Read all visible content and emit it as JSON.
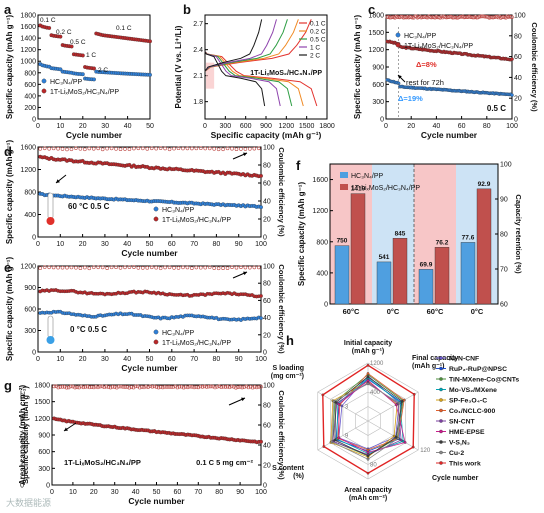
{
  "figure": {
    "panel_letters": [
      "a",
      "b",
      "c",
      "d",
      "e",
      "f",
      "g",
      "h"
    ],
    "watermark": "大数据能源"
  },
  "colors": {
    "blue": "#2f7fd6",
    "red": "#b8282a",
    "ce_red": "#c0504d",
    "arrow_blue": "#3399ff",
    "arrow_red": "#e0302a",
    "f_bg_red": "#f7c6c7",
    "f_bg_blue": "#cde3f5"
  },
  "chart_data": [
    {
      "panel": "a",
      "type": "scatter",
      "xlabel": "Cycle number",
      "ylabel": "Specific capacity (mAh g⁻¹)",
      "xlim": [
        0,
        50
      ],
      "ylim": [
        0,
        1800
      ],
      "xticks": [
        0,
        10,
        20,
        30,
        40,
        50
      ],
      "yticks": [
        0,
        200,
        400,
        600,
        800,
        1000,
        1200,
        1400,
        1600,
        1800
      ],
      "rate_labels": [
        "0.1 C",
        "0.2 C",
        "0.5 C",
        "1 C",
        "2 C",
        "0.1 C"
      ],
      "legend": [
        "HC₃N₄/PP",
        "1T-LiₓMoS₂/HC₃N₄/PP"
      ],
      "series": [
        {
          "name": "HC₃N₄/PP",
          "color": "#2f7fd6",
          "x": [
            1,
            2,
            3,
            4,
            5,
            6,
            7,
            8,
            9,
            10,
            11,
            12,
            13,
            14,
            15,
            16,
            17,
            18,
            19,
            20,
            21,
            22,
            23,
            24,
            25,
            26,
            27,
            28,
            29,
            30,
            31,
            32,
            33,
            34,
            35,
            36,
            37,
            38,
            39,
            40,
            41,
            42,
            43,
            44,
            45,
            46,
            47,
            48,
            49,
            50
          ],
          "y": [
            950,
            930,
            920,
            910,
            905,
            880,
            875,
            870,
            865,
            860,
            820,
            815,
            810,
            805,
            800,
            790,
            785,
            780,
            778,
            775,
            700,
            695,
            690,
            688,
            685,
            820,
            815,
            812,
            810,
            808,
            805,
            803,
            800,
            798,
            795,
            793,
            790,
            788,
            786,
            784,
            782,
            780,
            778,
            776,
            774,
            772,
            770,
            768,
            766,
            764
          ]
        },
        {
          "name": "1T-LiₓMoS₂/HC₃N₄/PP",
          "color": "#b8282a",
          "x": [
            1,
            2,
            3,
            4,
            5,
            6,
            7,
            8,
            9,
            10,
            11,
            12,
            13,
            14,
            15,
            16,
            17,
            18,
            19,
            20,
            21,
            22,
            23,
            24,
            25,
            26,
            27,
            28,
            29,
            30,
            31,
            32,
            33,
            34,
            35,
            36,
            37,
            38,
            39,
            40,
            41,
            42,
            43,
            44,
            45,
            46,
            47,
            48,
            49,
            50
          ],
          "y": [
            1620,
            1600,
            1590,
            1580,
            1575,
            1450,
            1440,
            1435,
            1430,
            1425,
            1280,
            1270,
            1265,
            1260,
            1255,
            1120,
            1115,
            1110,
            1105,
            1100,
            900,
            890,
            885,
            880,
            875,
            1480,
            1470,
            1460,
            1450,
            1445,
            1440,
            1435,
            1430,
            1425,
            1420,
            1415,
            1410,
            1405,
            1400,
            1395,
            1390,
            1385,
            1380,
            1375,
            1370,
            1365,
            1360,
            1355,
            1350,
            1345
          ]
        }
      ]
    },
    {
      "panel": "b",
      "type": "line",
      "xlabel": "Specific capacity (mAh g⁻¹)",
      "ylabel": "Potential (V vs. Li⁺/Li)",
      "xlim": [
        0,
        1800
      ],
      "ylim": [
        1.6,
        2.8
      ],
      "xticks": [
        0,
        300,
        600,
        900,
        1200,
        1500,
        1800
      ],
      "yticks": [
        1.8,
        2.1,
        2.4,
        2.7
      ],
      "annotation": "1T-LiₓMoS₂/HC₃N₄/PP",
      "series": [
        {
          "name": "0.1 C",
          "color": "#e3342f",
          "capacity": 1650
        },
        {
          "name": "0.2 C",
          "color": "#f08a24",
          "capacity": 1450
        },
        {
          "name": "0.5 C",
          "color": "#2e9e44",
          "capacity": 1280
        },
        {
          "name": "1 C",
          "color": "#8e44ad",
          "capacity": 1110
        },
        {
          "name": "2 C",
          "color": "#1a1a1a",
          "capacity": 880
        }
      ]
    },
    {
      "panel": "c",
      "type": "scatter",
      "xlabel": "Cycle number",
      "ylabel": "Specific capacity (mAh g⁻¹)",
      "y2label": "Coulombic efficiency (%)",
      "xlim": [
        0,
        100
      ],
      "ylim": [
        0,
        1800
      ],
      "y2lim": [
        0,
        100
      ],
      "xticks": [
        0,
        20,
        40,
        60,
        80,
        100
      ],
      "yticks": [
        0,
        300,
        600,
        900,
        1200,
        1500,
        1800
      ],
      "y2ticks": [
        0,
        20,
        40,
        60,
        80,
        100
      ],
      "annotations": [
        "Δ=8%",
        "rest for 72h",
        "Δ=19%",
        "0.5 C"
      ],
      "legend": [
        "HC₃N₄/PP",
        "1T-LiₓMoS₂/HC₃N₄/PP"
      ],
      "series": [
        {
          "name": "HC₃N₄/PP",
          "start": 680,
          "rest_drop": 560,
          "end": 420
        },
        {
          "name": "1T-LiₓMoS₂/HC₃N₄/PP",
          "start": 1350,
          "rest_drop": 1250,
          "end": 1030
        },
        {
          "name": "Coulombic efficiency",
          "value": 98
        }
      ]
    },
    {
      "panel": "d",
      "type": "scatter",
      "xlabel": "Cycle number",
      "ylabel": "Specific capacity (mAh g⁻¹)",
      "y2label": "Coulombic efficiency (%)",
      "xlim": [
        0,
        100
      ],
      "ylim": [
        0,
        1600
      ],
      "y2lim": [
        0,
        100
      ],
      "xticks": [
        0,
        10,
        20,
        30,
        40,
        50,
        60,
        70,
        80,
        90,
        100
      ],
      "yticks": [
        0,
        400,
        800,
        1200,
        1600
      ],
      "y2ticks": [
        0,
        20,
        40,
        60,
        80,
        100
      ],
      "annotation": "60 °C   0.5 C",
      "legend": [
        "HC₃N₄/PP",
        "1T-LiₓMoS₂/HC₃N₄/PP"
      ],
      "series": [
        {
          "name": "HC₃N₄/PP",
          "start": 760,
          "end": 540
        },
        {
          "name": "1T-LiₓMoS₂/HC₃N₄/PP",
          "start": 1420,
          "end": 1090
        },
        {
          "name": "Coulombic efficiency",
          "value": 98
        }
      ]
    },
    {
      "panel": "e",
      "type": "scatter",
      "xlabel": "Cycle number",
      "ylabel": "Specific capacity (mAh g⁻¹)",
      "y2label": "Coulombic efficiency (%)",
      "xlim": [
        0,
        100
      ],
      "ylim": [
        0,
        1200
      ],
      "y2lim": [
        0,
        100
      ],
      "xticks": [
        0,
        10,
        20,
        30,
        40,
        50,
        60,
        70,
        80,
        90,
        100
      ],
      "yticks": [
        0,
        300,
        600,
        900,
        1200
      ],
      "y2ticks": [
        0,
        20,
        40,
        60,
        80,
        100
      ],
      "annotation": "0 °C   0.5 C",
      "legend": [
        "HC₃N₄/PP",
        "1T-LiₓMoS₂/HC₃N₄/PP"
      ],
      "series": [
        {
          "name": "HC₃N₄/PP",
          "start": 541,
          "end": 460
        },
        {
          "name": "1T-LiₓMoS₂/HC₃N₄/PP",
          "start": 845,
          "end": 790
        },
        {
          "name": "Coulombic efficiency",
          "value": 98
        }
      ]
    },
    {
      "panel": "f",
      "type": "bar",
      "ylabel": "Specific capacity (mAh g⁻¹)",
      "y2label": "Capacity retention (%)",
      "ylim": [
        0,
        1800
      ],
      "y2lim": [
        60,
        100
      ],
      "yticks": [
        0,
        400,
        800,
        1200,
        1600
      ],
      "y2ticks": [
        60,
        70,
        80,
        90,
        100
      ],
      "categories": [
        "60°C",
        "0°C",
        "60°C",
        "0°C"
      ],
      "legend": [
        "HC₃N₄/PP",
        "1T-LiₓMoS₂/HC₃N₄/PP"
      ],
      "series": [
        {
          "name": "HC₃N₄/PP",
          "capacity": [
            750,
            541
          ],
          "retention": [
            69.9,
            77.6
          ]
        },
        {
          "name": "1T-LiₓMoS₂/HC₃N₄/PP",
          "capacity": [
            1419,
            845
          ],
          "retention": [
            76.2,
            92.9
          ]
        }
      ],
      "labels": [
        "750",
        "1419",
        "541",
        "845",
        "69.9",
        "76.2",
        "77.6",
        "92.9"
      ]
    },
    {
      "panel": "g",
      "type": "scatter",
      "xlabel": "Cycle number",
      "ylabel": "Areal capacity (mAh cm⁻²)",
      "y1label": "Specific capacity (mAh g⁻¹)",
      "y2label": "Coulombic efficiency (%)",
      "xlim": [
        0,
        100
      ],
      "ylim": [
        0,
        1800
      ],
      "y2lim": [
        0,
        100
      ],
      "xticks": [
        0,
        10,
        20,
        30,
        40,
        50,
        60,
        70,
        80,
        90,
        100
      ],
      "yticks": [
        0,
        300,
        600,
        900,
        1200,
        1500,
        1800
      ],
      "areal_ticks": [
        0,
        2,
        4,
        6,
        8
      ],
      "y2ticks": [
        0,
        20,
        40,
        60,
        80,
        100
      ],
      "annotations": [
        "1T-LiₓMoS₂/HC₃N₄/PP",
        "0.1 C   5 mg cm⁻²"
      ],
      "series": [
        {
          "name": "1T-LiₓMoS₂/HC₃N₄/PP",
          "start": 1190,
          "end": 770
        },
        {
          "name": "Coulombic efficiency",
          "value": 98
        }
      ]
    },
    {
      "panel": "h",
      "type": "radar",
      "axes": [
        "Initial capacity\n(mAh g⁻¹)",
        "Final capacity\n(mAh g⁻¹)",
        "Cycle number",
        "Areal capacity\n(mAh cm⁻²)",
        "S content\n(%)",
        "S loading\n(mg cm⁻²)"
      ],
      "ring_labels": [
        "400",
        "1200",
        "3",
        "9",
        "40",
        "120",
        "80"
      ],
      "series": [
        {
          "name": "Ni-N-CNF",
          "color": "#6a5acd",
          "values": [
            0.78,
            0.62,
            0.55,
            0.48,
            0.58,
            0.52
          ]
        },
        {
          "name": "RuP₂-RuP@NPSC",
          "color": "#1f4fd1",
          "values": [
            0.72,
            0.66,
            0.62,
            0.52,
            0.64,
            0.58
          ]
        },
        {
          "name": "TiN-MXene-Co@CNTs",
          "color": "#4a8c3a",
          "values": [
            0.8,
            0.7,
            0.58,
            0.6,
            0.7,
            0.66
          ]
        },
        {
          "name": "Mo-VS₂/MXene",
          "color": "#00a4b4",
          "values": [
            0.74,
            0.64,
            0.7,
            0.56,
            0.62,
            0.6
          ]
        },
        {
          "name": "SP-Fe₃O₄-C",
          "color": "#d4a017",
          "values": [
            0.68,
            0.58,
            0.52,
            0.62,
            0.74,
            0.7
          ]
        },
        {
          "name": "Co₁/NCLC-900",
          "color": "#e06030",
          "values": [
            0.82,
            0.72,
            0.6,
            0.5,
            0.6,
            0.56
          ]
        },
        {
          "name": "SN-CNT",
          "color": "#7b3fa0",
          "values": [
            0.66,
            0.6,
            0.66,
            0.58,
            0.7,
            0.62
          ]
        },
        {
          "name": "HME-EPSE",
          "color": "#c81e8c",
          "values": [
            0.7,
            0.56,
            0.74,
            0.54,
            0.58,
            0.58
          ]
        },
        {
          "name": "V-S,N₃",
          "color": "#3a3a3a",
          "values": [
            0.76,
            0.68,
            0.56,
            0.6,
            0.66,
            0.64
          ]
        },
        {
          "name": "Cu-2",
          "color": "#8a8a8a",
          "values": [
            0.64,
            0.62,
            0.6,
            0.66,
            0.72,
            0.68
          ]
        },
        {
          "name": "This work",
          "color": "#e02424",
          "values": [
            0.96,
            0.92,
            0.9,
            0.9,
            0.88,
            0.9
          ]
        }
      ]
    }
  ]
}
